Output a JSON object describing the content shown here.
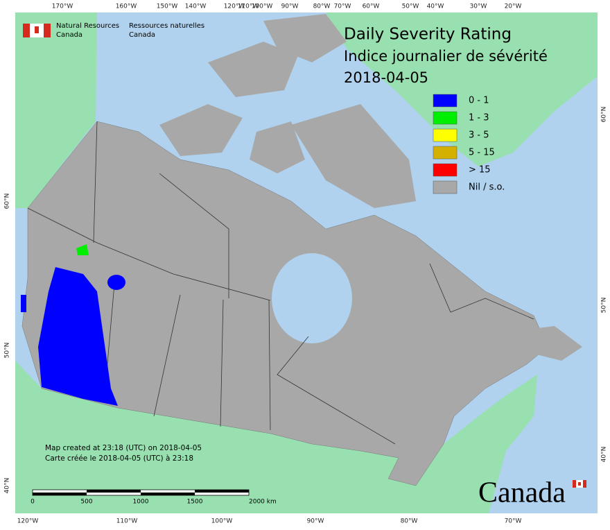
{
  "header": {
    "org_en": "Natural Resources\nCanada",
    "org_fr": "Ressources naturelles\nCanada"
  },
  "title": [
    "Daily Severity Rating",
    "Indice journalier de sévérité",
    "2018-04-05"
  ],
  "legend": [
    {
      "label": "0 - 1",
      "color": "#0000ff"
    },
    {
      "label": "1 - 3",
      "color": "#00ee00"
    },
    {
      "label": "3 - 5",
      "color": "#ffff00"
    },
    {
      "label": "5 - 15",
      "color": "#d4b000"
    },
    {
      "label": "> 15",
      "color": "#ff0000"
    },
    {
      "label": "Nil / s.o.",
      "color": "#a8a8a8"
    }
  ],
  "top_ticks": [
    "170°W",
    "160°W",
    "150°W",
    "140°W",
    "120°W",
    "110°W",
    "100°W",
    "90°W",
    "80°W",
    "70°W",
    "60°W",
    "50°W",
    "40°W",
    "30°W",
    "20°W"
  ],
  "bottom_ticks": [
    "120°W",
    "110°W",
    "100°W",
    "90°W",
    "80°W",
    "70°W"
  ],
  "left_ticks": [
    "60°N",
    "50°N",
    "40°N"
  ],
  "right_ticks": [
    "60°N",
    "50°N",
    "40°N"
  ],
  "note": [
    "Map created at 23:18 (UTC) on 2018-04-05",
    "Carte créée le 2018-04-05 (UTC) à 23:18"
  ],
  "scale_bar": [
    "0",
    "500",
    "1000",
    "1500",
    "2000  km"
  ],
  "wordmark": "Canada"
}
